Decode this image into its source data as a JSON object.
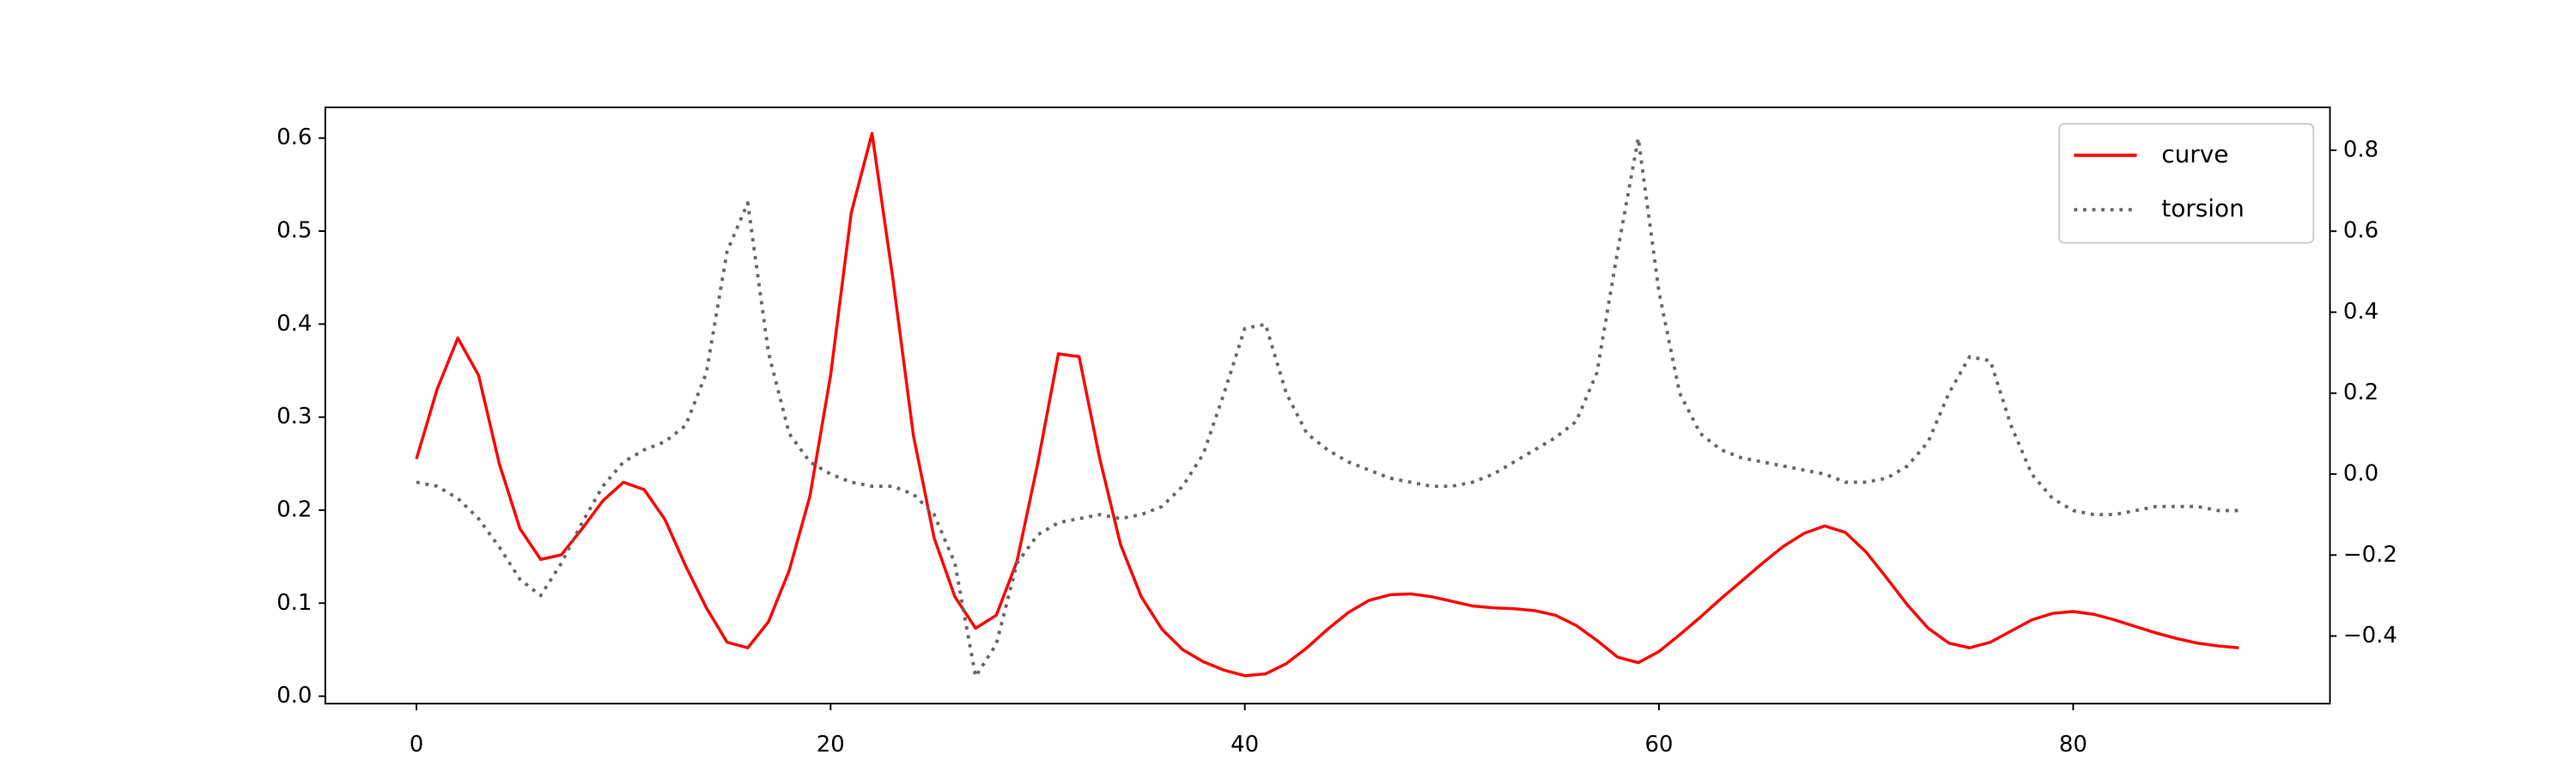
{
  "chart_data": {
    "type": "line",
    "x": [
      0,
      1,
      2,
      3,
      4,
      5,
      6,
      7,
      8,
      9,
      10,
      11,
      12,
      13,
      14,
      15,
      16,
      17,
      18,
      19,
      20,
      21,
      22,
      23,
      24,
      25,
      26,
      27,
      28,
      29,
      30,
      31,
      32,
      33,
      34,
      35,
      36,
      37,
      38,
      39,
      40,
      41,
      42,
      43,
      44,
      45,
      46,
      47,
      48,
      49,
      50,
      51,
      52,
      53,
      54,
      55,
      56,
      57,
      58,
      59,
      60,
      61,
      62,
      63,
      64,
      65,
      66,
      67,
      68,
      69,
      70,
      71,
      72,
      73,
      74,
      75,
      76,
      77,
      78,
      79,
      80,
      81,
      82,
      83,
      84,
      85,
      86,
      87,
      88
    ],
    "series": [
      {
        "name": "curve",
        "color": "#ff0000",
        "style": "solid",
        "values": [
          0.255,
          0.33,
          0.385,
          0.345,
          0.25,
          0.18,
          0.147,
          0.152,
          0.18,
          0.21,
          0.23,
          0.222,
          0.19,
          0.14,
          0.095,
          0.058,
          0.052,
          0.08,
          0.135,
          0.215,
          0.345,
          0.52,
          0.605,
          0.45,
          0.28,
          0.17,
          0.107,
          0.073,
          0.087,
          0.145,
          0.25,
          0.368,
          0.365,
          0.255,
          0.163,
          0.107,
          0.072,
          0.05,
          0.037,
          0.028,
          0.022,
          0.024,
          0.035,
          0.052,
          0.072,
          0.09,
          0.103,
          0.109,
          0.11,
          0.107,
          0.102,
          0.097,
          0.095,
          0.094,
          0.092,
          0.087,
          0.076,
          0.06,
          0.042,
          0.036,
          0.048,
          0.066,
          0.085,
          0.105,
          0.124,
          0.143,
          0.161,
          0.175,
          0.183,
          0.176,
          0.155,
          0.127,
          0.098,
          0.073,
          0.057,
          0.052,
          0.058,
          0.07,
          0.082,
          0.089,
          0.091,
          0.088,
          0.082,
          0.075,
          0.068,
          0.062,
          0.057,
          0.054,
          0.052
        ]
      },
      {
        "name": "torsion",
        "color": "#666666",
        "style": "dotted",
        "axis": "y2",
        "values": [
          -0.02,
          -0.03,
          -0.06,
          -0.11,
          -0.18,
          -0.26,
          -0.3,
          -0.22,
          -0.12,
          -0.03,
          0.03,
          0.06,
          0.08,
          0.12,
          0.25,
          0.55,
          0.67,
          0.3,
          0.1,
          0.03,
          0.0,
          -0.02,
          -0.03,
          -0.03,
          -0.05,
          -0.1,
          -0.22,
          -0.5,
          -0.42,
          -0.22,
          -0.15,
          -0.12,
          -0.11,
          -0.1,
          -0.11,
          -0.1,
          -0.08,
          -0.03,
          0.05,
          0.2,
          0.36,
          0.37,
          0.2,
          0.1,
          0.06,
          0.03,
          0.01,
          -0.01,
          -0.02,
          -0.03,
          -0.03,
          -0.02,
          0.0,
          0.03,
          0.06,
          0.09,
          0.13,
          0.25,
          0.55,
          0.83,
          0.45,
          0.2,
          0.1,
          0.06,
          0.04,
          0.03,
          0.02,
          0.01,
          0.0,
          -0.02,
          -0.02,
          -0.01,
          0.02,
          0.08,
          0.2,
          0.29,
          0.28,
          0.12,
          0.0,
          -0.06,
          -0.09,
          -0.1,
          -0.1,
          -0.09,
          -0.08,
          -0.08,
          -0.08,
          -0.09,
          -0.09
        ]
      }
    ],
    "xlim": [
      -4.4,
      92.4
    ],
    "xticks": [
      0,
      20,
      40,
      60,
      80
    ],
    "ylim": [
      -0.008,
      0.633
    ],
    "yticks": [
      {
        "value": 0,
        "label": "0.0"
      },
      0.1,
      0.2,
      0.3,
      0.4,
      0.5,
      0.6
    ],
    "y2lim": [
      -0.567,
      0.906
    ],
    "y2ticks": [
      {
        "value": -0.4,
        "label": "−0.4"
      },
      {
        "value": -0.2,
        "label": "−0.2"
      },
      {
        "value": 0,
        "label": "0.0"
      },
      0.2,
      0.4,
      0.6,
      0.8
    ],
    "legend": "upper right"
  }
}
